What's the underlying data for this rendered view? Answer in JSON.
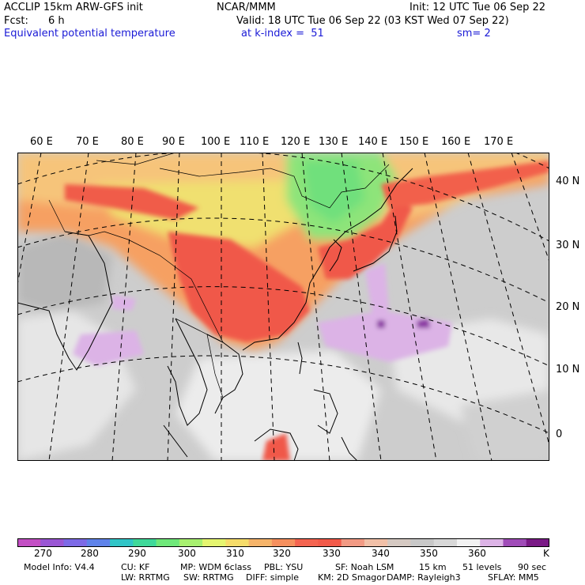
{
  "header": {
    "model": "ACCLIP 15km ARW-GFS init",
    "org": "NCAR/MMM",
    "init": "Init: 12 UTC Tue 06 Sep 22",
    "fcst_label": "Fcst:",
    "fcst_value": "6 h",
    "valid": "Valid: 18 UTC Tue 06 Sep 22 (03 KST Wed 07 Sep 22)",
    "field": "Equivalent potential temperature",
    "level": "at k-index =  51",
    "smooth": "sm= 2"
  },
  "map": {
    "lon_labels": [
      "60 E",
      "70 E",
      "80 E",
      "90 E",
      "100 E",
      "110 E",
      "120 E",
      "130 E",
      "140 E",
      "150 E",
      "160 E",
      "170 E"
    ],
    "lat_labels": [
      "40 N",
      "30 N",
      "20 N",
      "10 N",
      "0"
    ]
  },
  "colorbar": {
    "unit": "K",
    "tick_labels": [
      "270",
      "280",
      "290",
      "300",
      "310",
      "320",
      "330",
      "340",
      "350",
      "360"
    ],
    "colors": [
      "#c34fc4",
      "#9a56d4",
      "#7d6ae6",
      "#5f83ea",
      "#31c5c7",
      "#3fd99a",
      "#6fe87a",
      "#a8f070",
      "#e5f570",
      "#f6dc6a",
      "#f6b46a",
      "#f6905e",
      "#f46450",
      "#f25a4a",
      "#f29a84",
      "#f1c0a8",
      "#d5c9c2",
      "#c8c8c8",
      "#d8d8d8",
      "#f2f2f2",
      "#dcb3e6",
      "#a04cb8",
      "#7a1a86"
    ]
  },
  "footer": {
    "line1": [
      "Model Info: V4.4",
      "CU: KF",
      "MP: WDM 6class",
      "PBL: YSU",
      "SF: Noah LSM",
      "15 km",
      "51 levels",
      "90 sec"
    ],
    "line2": [
      "LW: RRTMG",
      "SW: RRTMG",
      "DIFF: simple",
      "KM: 2D Smagor",
      "DAMP: Rayleigh3",
      "SFLAY: MM5"
    ]
  }
}
